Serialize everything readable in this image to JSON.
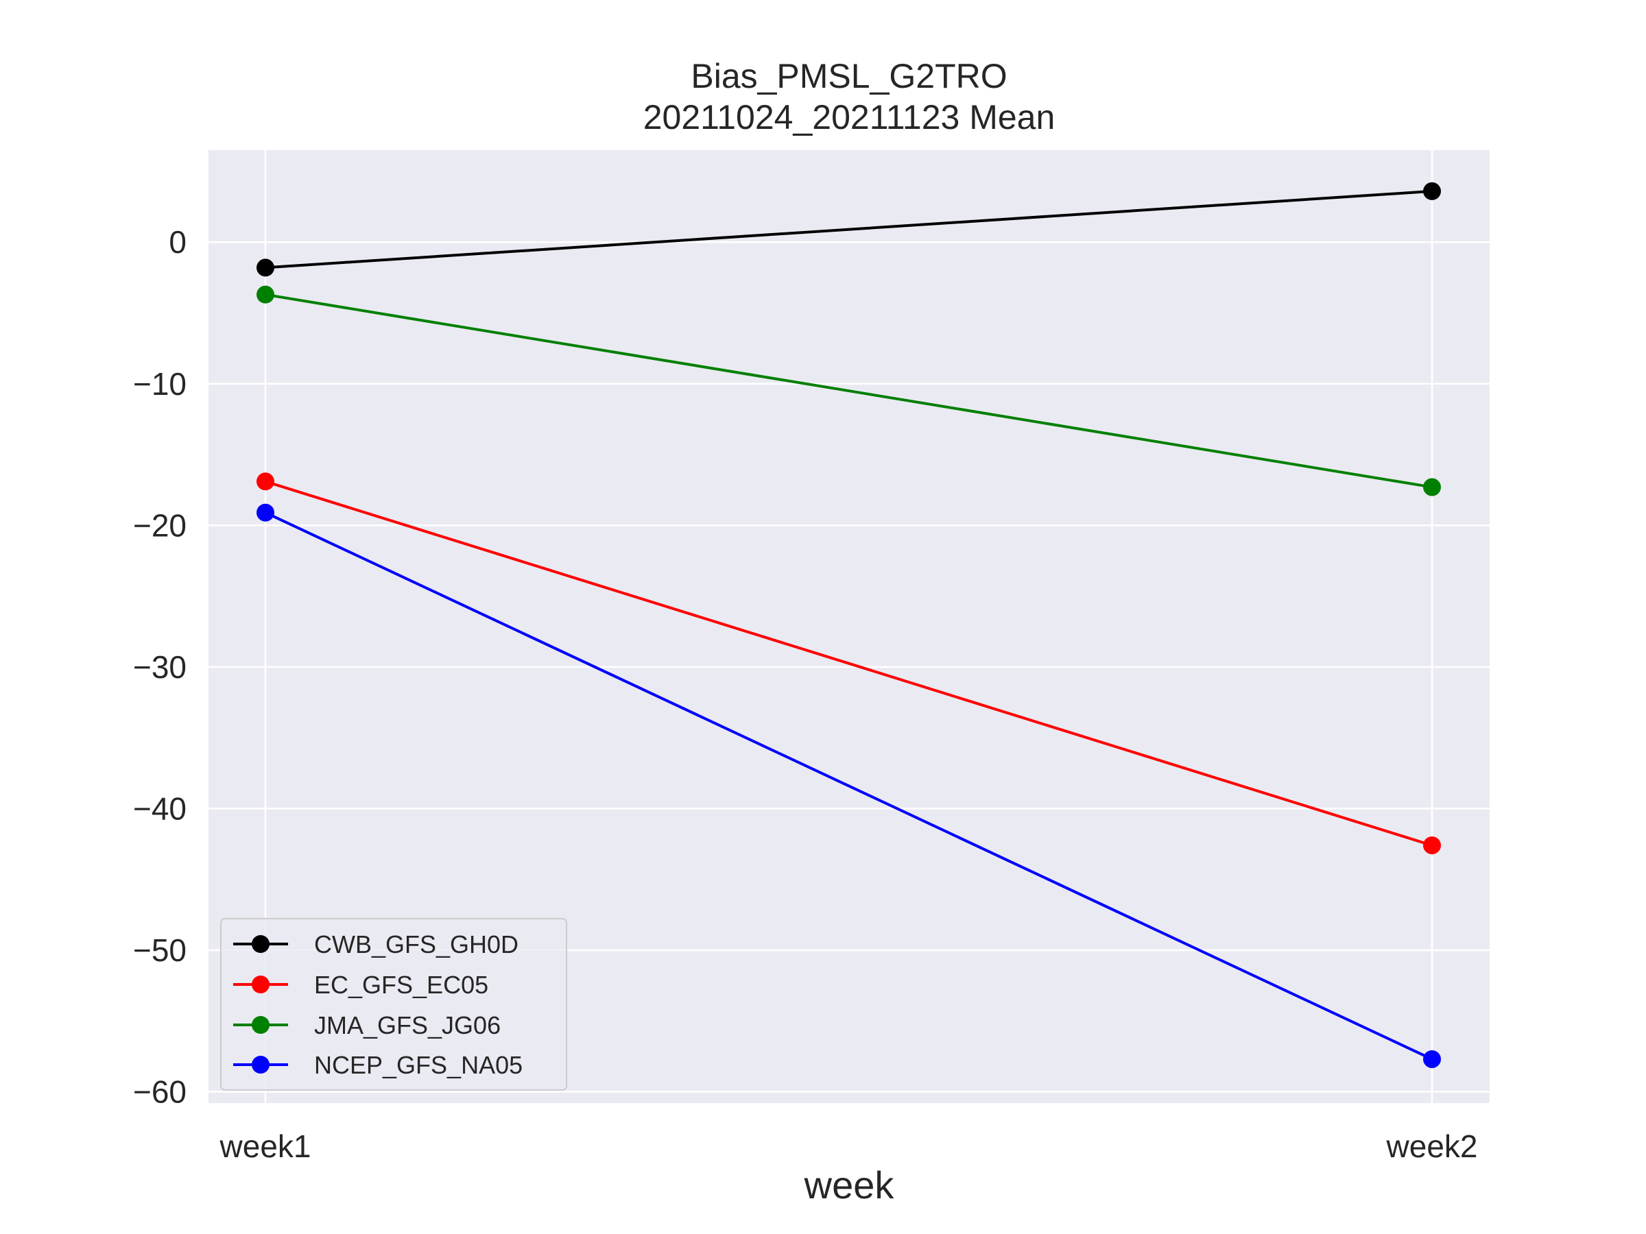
{
  "chart_data": {
    "type": "line",
    "title": "Bias_PMSL_G2TRO",
    "subtitle": "20211024_20211123 Mean",
    "xlabel": "week",
    "ylabel": "",
    "categories": [
      "week1",
      "week2"
    ],
    "yticks": [
      0,
      -10,
      -20,
      -30,
      -40,
      -50,
      -60
    ],
    "ytick_labels": [
      "0",
      "−10",
      "−20",
      "−30",
      "−40",
      "−50",
      "−60"
    ],
    "ylim": [
      -60.8,
      6.5
    ],
    "grid": true,
    "legend_position": "lower-left",
    "background_color": "#eaeaf2",
    "grid_color": "#ffffff",
    "series": [
      {
        "name": "CWB_GFS_GH0D",
        "color": "#000000",
        "values": [
          -1.8,
          3.6
        ]
      },
      {
        "name": "EC_GFS_EC05",
        "color": "#ff0000",
        "values": [
          -16.9,
          -42.6
        ]
      },
      {
        "name": "JMA_GFS_JG06",
        "color": "#008000",
        "values": [
          -3.7,
          -17.3
        ]
      },
      {
        "name": "NCEP_GFS_NA05",
        "color": "#0000ff",
        "values": [
          -19.1,
          -57.7
        ]
      }
    ]
  }
}
